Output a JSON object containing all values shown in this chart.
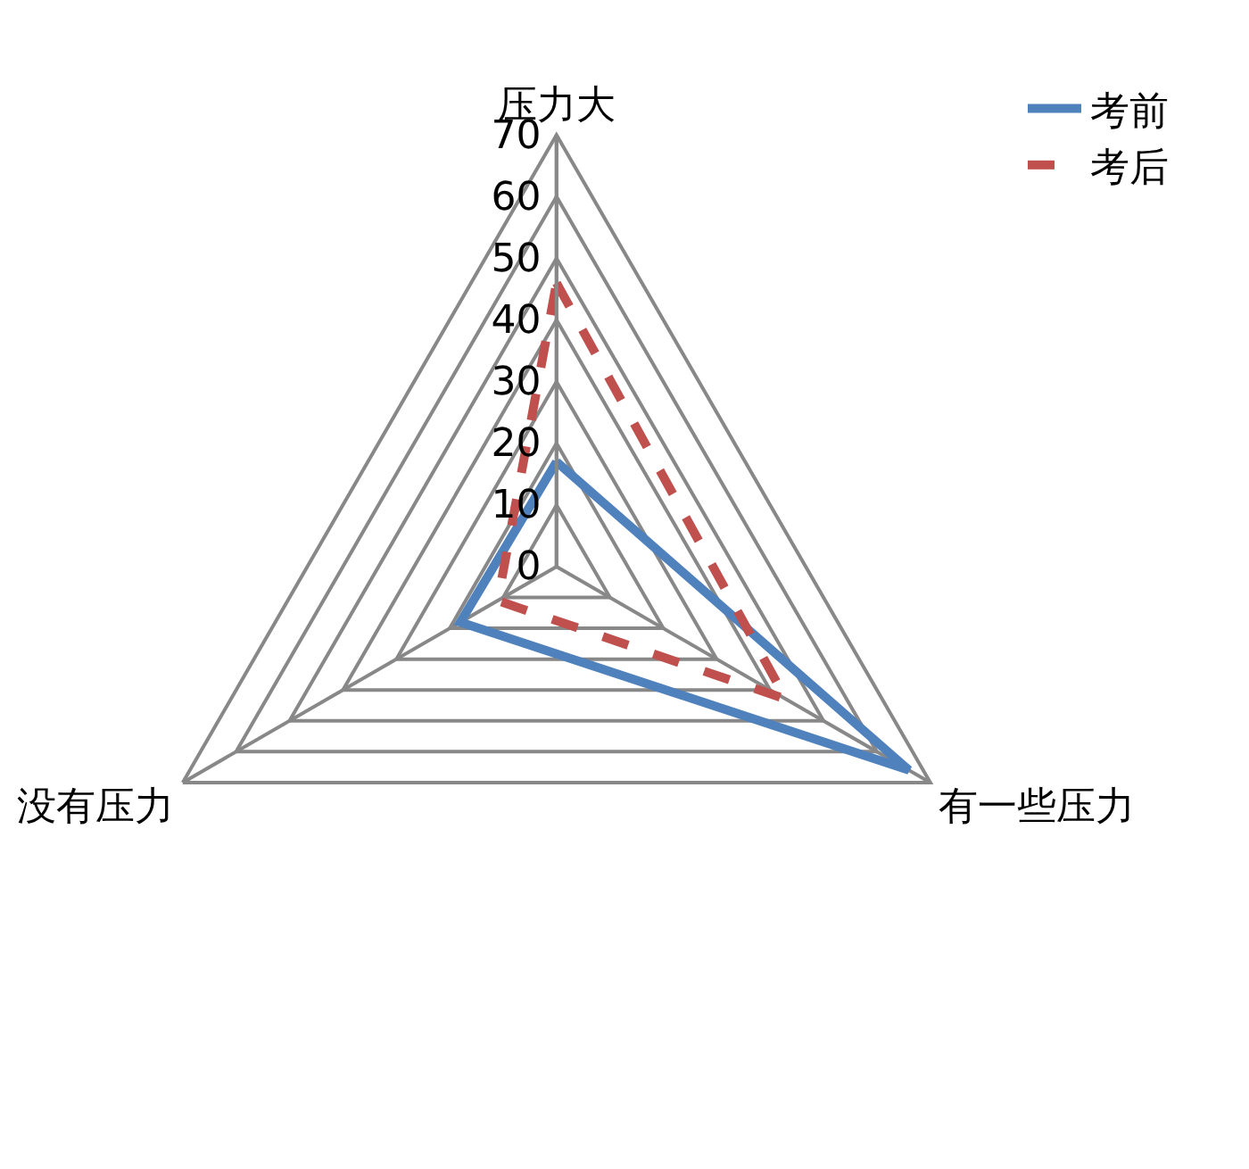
{
  "chart_data": {
    "type": "radar",
    "categories": [
      "压力大",
      "有一些压力",
      "没有压力"
    ],
    "series": [
      {
        "name": "考前",
        "color": "#4f81bd",
        "values": [
          17,
          66,
          18
        ],
        "line_style": "solid"
      },
      {
        "name": "考后",
        "color": "#c0504d",
        "values": [
          46,
          43,
          11
        ],
        "line_style": "dashed"
      }
    ],
    "ylim": [
      0,
      70
    ],
    "yticks": [
      0,
      10,
      20,
      30,
      40,
      50,
      60,
      70
    ],
    "grid": true,
    "legend": "top right",
    "marker": "none"
  }
}
